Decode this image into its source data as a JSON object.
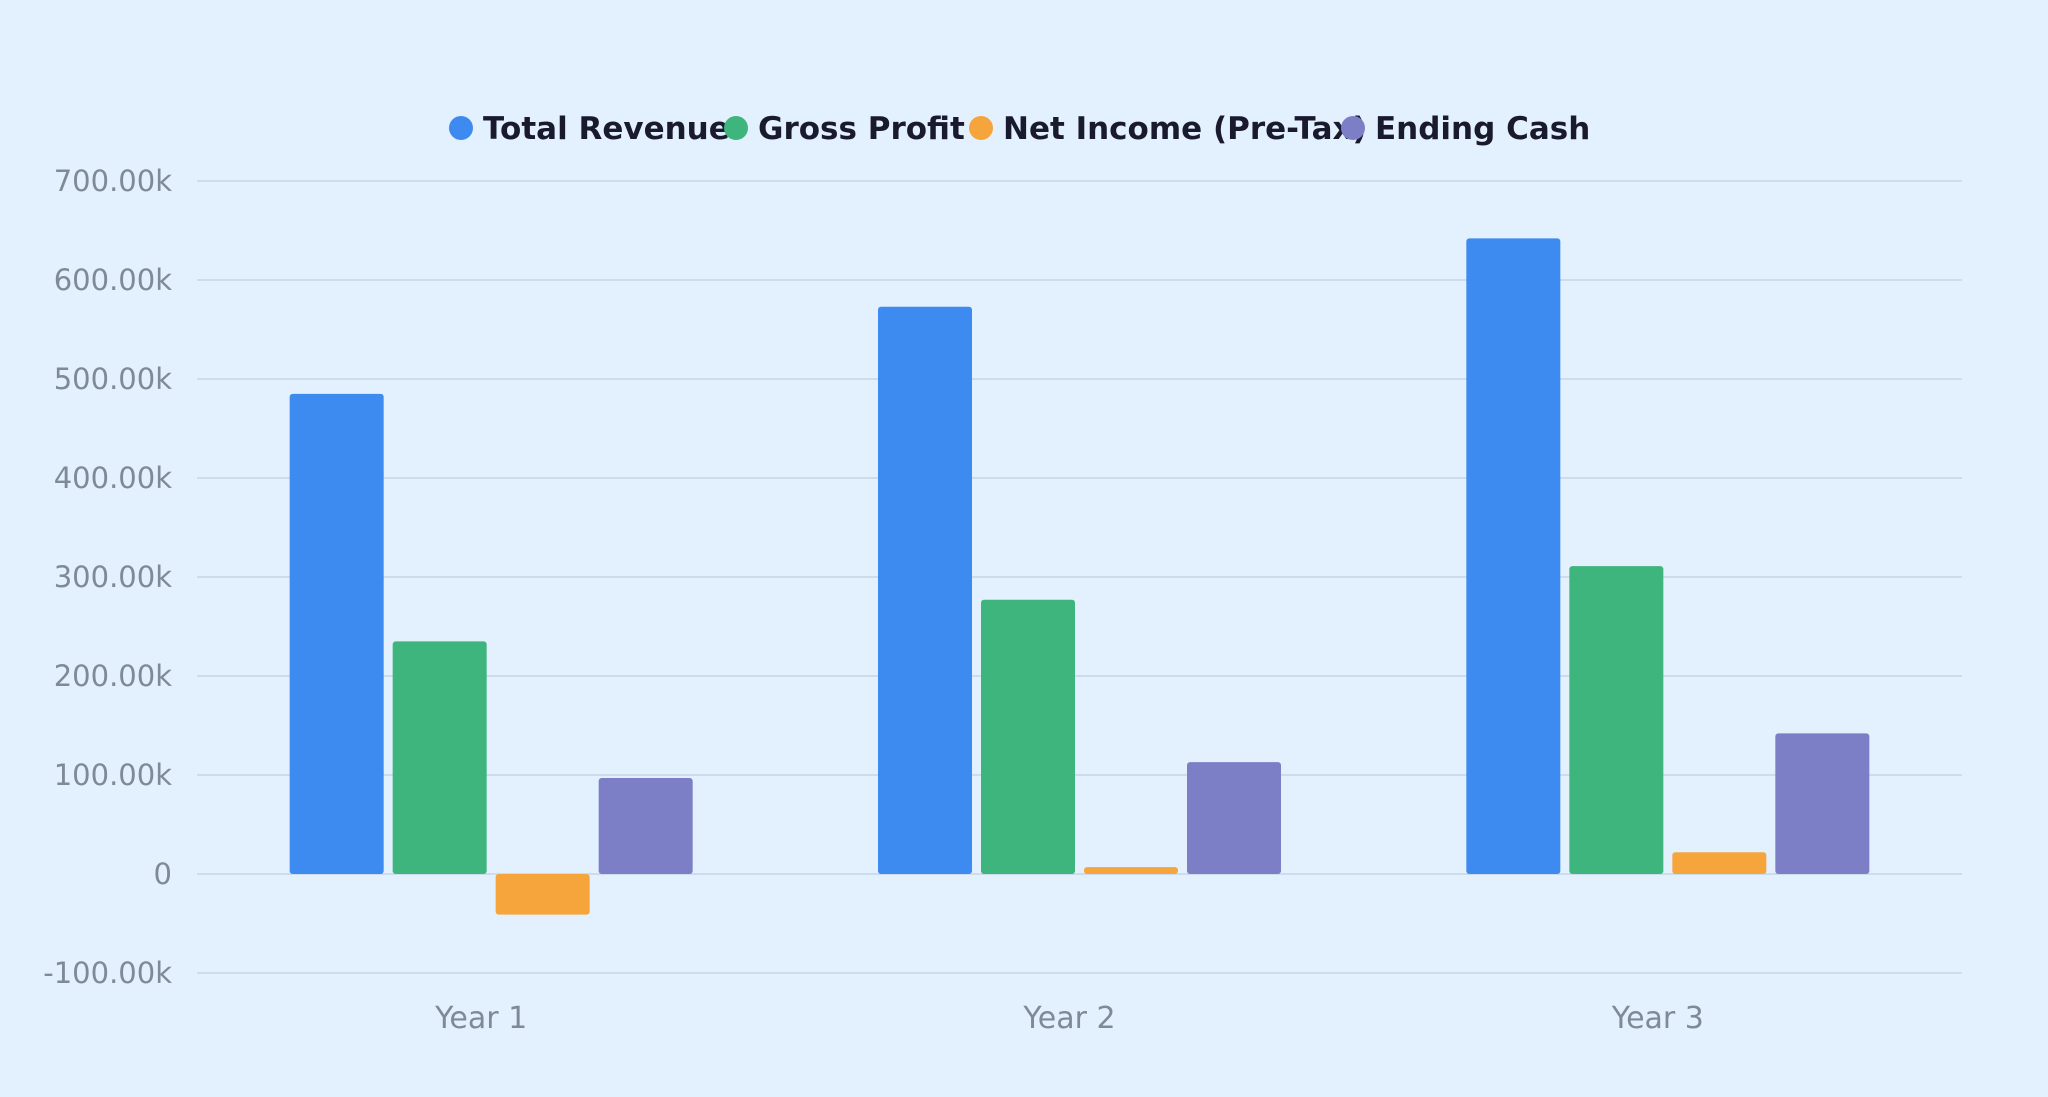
{
  "colors": {
    "background": "#e3f0fd",
    "grid": "#c6d6e6",
    "tick_text": "#7f8a99",
    "legend_text": "#1a1a2e"
  },
  "chart_data": {
    "type": "bar",
    "title": "",
    "xlabel": "",
    "ylabel": "",
    "categories": [
      "Year 1",
      "Year 2",
      "Year 3"
    ],
    "series": [
      {
        "name": "Total Revenue",
        "color": "#3d8af0",
        "values": [
          485000,
          573000,
          642000
        ]
      },
      {
        "name": "Gross Profit",
        "color": "#3eb57c",
        "values": [
          235000,
          277000,
          311000
        ]
      },
      {
        "name": "Net Income (Pre-Tax)",
        "color": "#f5a53c",
        "values": [
          -41000,
          7000,
          22000
        ]
      },
      {
        "name": "Ending Cash",
        "color": "#7c7fc6",
        "values": [
          97000,
          113000,
          142000
        ]
      }
    ],
    "ylim": [
      -100000,
      700000
    ],
    "y_ticks": [
      {
        "value": 700000,
        "label": "700.00k"
      },
      {
        "value": 600000,
        "label": "600.00k"
      },
      {
        "value": 500000,
        "label": "500.00k"
      },
      {
        "value": 400000,
        "label": "400.00k"
      },
      {
        "value": 300000,
        "label": "300.00k"
      },
      {
        "value": 200000,
        "label": "200.00k"
      },
      {
        "value": 100000,
        "label": "100.00k"
      },
      {
        "value": 0,
        "label": "0"
      },
      {
        "value": -100000,
        "label": "-100.00k"
      }
    ],
    "grid": true,
    "legend_position": "top-center"
  }
}
